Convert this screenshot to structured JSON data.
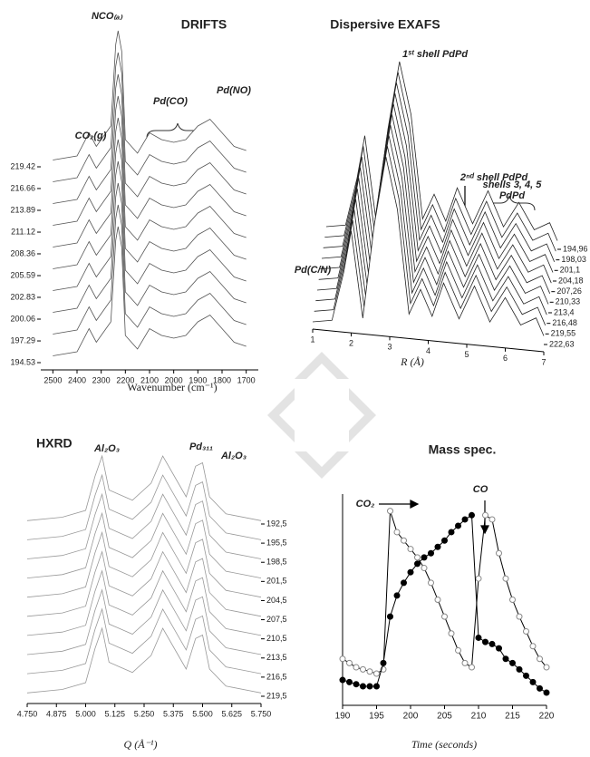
{
  "chart_data": [
    {
      "type": "waterfall",
      "title": "DRIFTS",
      "x_label": "Wavenumber (cm⁻¹)",
      "annotations": [
        "NCO₍ₐ₎",
        "CO₂(g)",
        "Pd(CO)",
        "Pd(NO)"
      ],
      "x": [
        2500,
        2400,
        2350,
        2320,
        2260,
        2240,
        2230,
        2215,
        2200,
        2150,
        2100,
        2050,
        2000,
        1950,
        1900,
        1850,
        1800,
        1750,
        1700
      ],
      "values": [
        0.05,
        0.08,
        0.25,
        0.15,
        0.3,
        0.9,
        1.0,
        0.85,
        0.2,
        0.1,
        0.25,
        0.2,
        0.18,
        0.2,
        0.3,
        0.35,
        0.25,
        0.15,
        0.12
      ],
      "color": "#555555",
      "xlim": [
        2550,
        1650
      ],
      "xticks": [
        2500,
        2400,
        2300,
        2200,
        2100,
        2000,
        1900,
        1800,
        1700
      ],
      "ylim": [
        0,
        1
      ],
      "zlim": [
        194.53,
        219.42
      ],
      "zticks": [
        219.42,
        216.66,
        213.89,
        211.12,
        208.36,
        205.59,
        202.83,
        200.06,
        197.29,
        194.53
      ]
    },
    {
      "type": "waterfall",
      "title": "Dispersive EXAFS",
      "x_label": "R (Å)",
      "annotations": [
        "Pd(C/N)",
        "1ˢᵗ shell PdPd",
        "2ⁿᵈ shell PdPd",
        "shells 3, 4, 5",
        "PdPd"
      ],
      "x": [
        1,
        1.5,
        1.8,
        2.0,
        2.3,
        2.6,
        2.9,
        3.2,
        3.5,
        3.8,
        4.1,
        4.4,
        4.8,
        5.2,
        5.6,
        6.0,
        6.4,
        6.8,
        7
      ],
      "values": [
        0,
        0.02,
        0.3,
        0.55,
        0.05,
        0.6,
        1.0,
        0.7,
        0.1,
        0.25,
        0.1,
        0.3,
        0.1,
        0.3,
        0.1,
        0.25,
        0.1,
        0.15,
        0.05
      ],
      "color": "#222222",
      "xlim": [
        1,
        7
      ],
      "xticks": [
        1,
        2,
        3,
        4,
        5,
        6,
        7
      ],
      "ylim": [
        0,
        1
      ],
      "zlim": [
        194.96,
        222.63
      ],
      "zticks": [
        {
          "value": 194.96,
          "label": "194,96"
        },
        {
          "value": 198.03,
          "label": "198,03"
        },
        {
          "value": 201.1,
          "label": "201,1"
        },
        {
          "value": 204.18,
          "label": "204,18"
        },
        {
          "value": 207.26,
          "label": "207,26"
        },
        {
          "value": 210.33,
          "label": "210,33"
        },
        {
          "value": 213.4,
          "label": "213,4"
        },
        {
          "value": 216.48,
          "label": "216,48"
        },
        {
          "value": 219.55,
          "label": "219,55"
        },
        {
          "value": 222.63,
          "label": "222,63"
        }
      ]
    },
    {
      "type": "waterfall",
      "title": "HXRD",
      "x_label": "Q (Å⁻¹)",
      "annotations": [
        "Al₂O₃",
        "Pd₃₁₁",
        "Al₂O₃"
      ],
      "x": [
        4.75,
        4.9,
        5.0,
        5.04,
        5.07,
        5.1,
        5.2,
        5.28,
        5.33,
        5.38,
        5.43,
        5.47,
        5.5,
        5.53,
        5.6,
        5.75
      ],
      "values": [
        0.05,
        0.1,
        0.2,
        0.7,
        1.0,
        0.5,
        0.35,
        0.6,
        1.0,
        0.7,
        0.4,
        0.85,
        0.9,
        0.4,
        0.15,
        0.05
      ],
      "color": "#999999",
      "xlim": [
        4.75,
        5.75
      ],
      "xticks": [
        {
          "value": 4.75,
          "label": "4.750"
        },
        {
          "value": 4.875,
          "label": "4.875"
        },
        {
          "value": 5,
          "label": "5.000"
        },
        {
          "value": 5.125,
          "label": "5.125"
        },
        {
          "value": 5.25,
          "label": "5.250"
        },
        {
          "value": 5.375,
          "label": "5.375"
        },
        {
          "value": 5.5,
          "label": "5.500"
        },
        {
          "value": 5.625,
          "label": "5.625"
        },
        {
          "value": 5.75,
          "label": "5.750"
        }
      ],
      "ylim": [
        0,
        1
      ],
      "zlim": [
        192.5,
        219.5
      ],
      "zticks": [
        {
          "value": 192.5,
          "label": "192,5"
        },
        {
          "value": 195.5,
          "label": "195,5"
        },
        {
          "value": 198.5,
          "label": "198,5"
        },
        {
          "value": 201.5,
          "label": "201,5"
        },
        {
          "value": 204.5,
          "label": "204,5"
        },
        {
          "value": 207.5,
          "label": "207,5"
        },
        {
          "value": 210.5,
          "label": "210,5"
        },
        {
          "value": 213.5,
          "label": "213,5"
        },
        {
          "value": 216.5,
          "label": "216,5"
        },
        {
          "value": 219.5,
          "label": "219,5"
        }
      ]
    },
    {
      "type": "line",
      "title": "Mass spec.",
      "x_label": "Time (seconds)",
      "annotations": [
        "CO₂",
        "CO"
      ],
      "x": [
        190,
        191,
        192,
        193,
        194,
        195,
        196,
        197,
        198,
        199,
        200,
        201,
        202,
        203,
        204,
        205,
        206,
        207,
        208,
        209,
        210,
        211,
        212,
        213,
        214,
        215,
        216,
        217,
        218,
        219,
        220
      ],
      "series": [
        {
          "name": "CO₂",
          "color": "#888888",
          "values": [
            0.22,
            0.2,
            0.18,
            0.17,
            0.16,
            0.15,
            0.17,
            0.92,
            0.82,
            0.78,
            0.74,
            0.7,
            0.65,
            0.58,
            0.5,
            0.42,
            0.34,
            0.26,
            0.2,
            0.18,
            0.6,
            0.9,
            0.88,
            0.72,
            0.6,
            0.5,
            0.42,
            0.35,
            0.28,
            0.22,
            0.18
          ]
        },
        {
          "name": "CO",
          "color": "#000000",
          "values": [
            0.12,
            0.11,
            0.1,
            0.09,
            0.09,
            0.09,
            0.2,
            0.42,
            0.52,
            0.58,
            0.63,
            0.67,
            0.7,
            0.72,
            0.75,
            0.78,
            0.82,
            0.85,
            0.88,
            0.9,
            0.32,
            0.3,
            0.29,
            0.27,
            0.22,
            0.2,
            0.17,
            0.14,
            0.11,
            0.08,
            0.06
          ]
        }
      ],
      "xlim": [
        190,
        220
      ],
      "xticks": [
        190,
        195,
        200,
        205,
        210,
        215,
        220
      ],
      "ylim": [
        0,
        1
      ]
    }
  ]
}
